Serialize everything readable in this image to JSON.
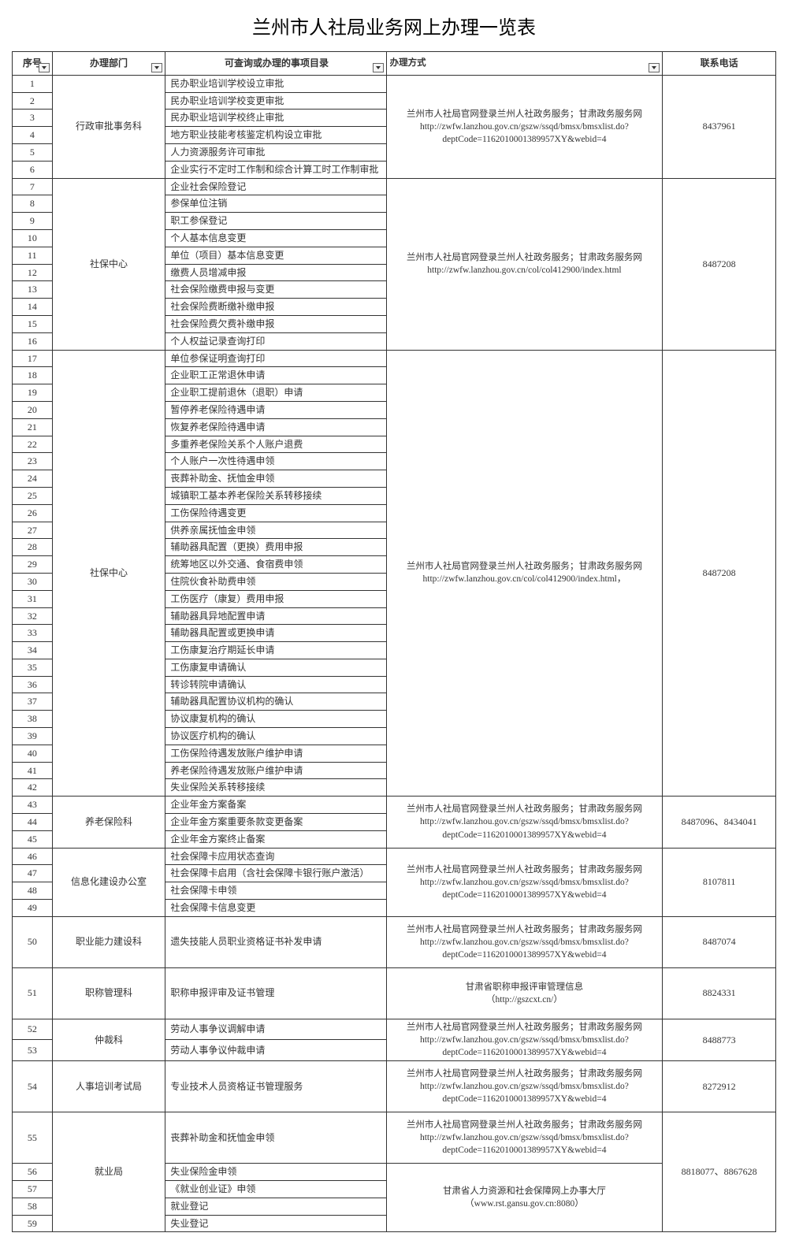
{
  "title": "兰州市人社局业务网上办理一览表",
  "headers": {
    "seq": "序号",
    "dept": "办理部门",
    "item": "可查询或办理的事项目录",
    "method": "办理方式",
    "phone": "联系电话"
  },
  "methodTexts": {
    "m1": "兰州市人社局官网登录兰州人社政务服务；甘肃政务服务网\nhttp://zwfw.lanzhou.gov.cn/gszw/ssqd/bmsx/bmsxlist.do?deptCode=1162010001389957XY&webid=4",
    "m2": "兰州市人社局官网登录兰州人社政务服务；甘肃政务服务网\nhttp://zwfw.lanzhou.gov.cn/col/col412900/index.html",
    "m3": "兰州市人社局官网登录兰州人社政务服务；甘肃政务服务网\nhttp://zwfw.lanzhou.gov.cn/col/col412900/index.html，",
    "m4": "甘肃省职称申报评审管理信息\n（http://gszcxt.cn/）",
    "m5": "甘肃省人力资源和社会保障网上办事大厅\n（www.rst.gansu.gov.cn:8080）"
  },
  "groups": [
    {
      "dept": "行政审批事务科",
      "phone": "8437961",
      "method": "m1",
      "items": [
        {
          "n": 1,
          "t": "民办职业培训学校设立审批"
        },
        {
          "n": 2,
          "t": "民办职业培训学校变更审批"
        },
        {
          "n": 3,
          "t": "民办职业培训学校终止审批"
        },
        {
          "n": 4,
          "t": "地方职业技能考核鉴定机构设立审批"
        },
        {
          "n": 5,
          "t": "人力资源服务许可审批"
        },
        {
          "n": 6,
          "t": "企业实行不定时工作制和综合计算工时工作制审批"
        }
      ]
    },
    {
      "dept": "社保中心",
      "phone": "8487208",
      "method": "m2",
      "items": [
        {
          "n": 7,
          "t": "企业社会保险登记"
        },
        {
          "n": 8,
          "t": "参保单位注销"
        },
        {
          "n": 9,
          "t": "职工参保登记"
        },
        {
          "n": 10,
          "t": "个人基本信息变更"
        },
        {
          "n": 11,
          "t": "单位（项目）基本信息变更"
        },
        {
          "n": 12,
          "t": "缴费人员增减申报"
        },
        {
          "n": 13,
          "t": "社会保险缴费申报与变更"
        },
        {
          "n": 14,
          "t": "社会保险费断缴补缴申报"
        },
        {
          "n": 15,
          "t": "社会保险费欠费补缴申报"
        },
        {
          "n": 16,
          "t": "个人权益记录查询打印"
        }
      ]
    },
    {
      "dept": "社保中心",
      "phone": "8487208",
      "method": "m3",
      "items": [
        {
          "n": 17,
          "t": "单位参保证明查询打印"
        },
        {
          "n": 18,
          "t": "企业职工正常退休申请"
        },
        {
          "n": 19,
          "t": "企业职工提前退休（退职）申请"
        },
        {
          "n": 20,
          "t": "暂停养老保险待遇申请"
        },
        {
          "n": 21,
          "t": "恢复养老保险待遇申请"
        },
        {
          "n": 22,
          "t": "多重养老保险关系个人账户退费"
        },
        {
          "n": 23,
          "t": "个人账户一次性待遇申领"
        },
        {
          "n": 24,
          "t": "丧葬补助金、抚恤金申领"
        },
        {
          "n": 25,
          "t": "城镇职工基本养老保险关系转移接续"
        },
        {
          "n": 26,
          "t": "工伤保险待遇变更"
        },
        {
          "n": 27,
          "t": "供养亲属抚恤金申领"
        },
        {
          "n": 28,
          "t": "辅助器具配置（更换）费用申报"
        },
        {
          "n": 29,
          "t": "统筹地区以外交通、食宿费申领"
        },
        {
          "n": 30,
          "t": "住院伙食补助费申领"
        },
        {
          "n": 31,
          "t": "工伤医疗（康复）费用申报"
        },
        {
          "n": 32,
          "t": "辅助器具异地配置申请"
        },
        {
          "n": 33,
          "t": "辅助器具配置或更换申请"
        },
        {
          "n": 34,
          "t": "工伤康复治疗期延长申请"
        },
        {
          "n": 35,
          "t": "工伤康复申请确认"
        },
        {
          "n": 36,
          "t": "转诊转院申请确认"
        },
        {
          "n": 37,
          "t": "辅助器具配置协议机构的确认"
        },
        {
          "n": 38,
          "t": "协议康复机构的确认"
        },
        {
          "n": 39,
          "t": "协议医疗机构的确认"
        },
        {
          "n": 40,
          "t": "工伤保险待遇发放账户维护申请"
        },
        {
          "n": 41,
          "t": "养老保险待遇发放账户维护申请"
        },
        {
          "n": 42,
          "t": "失业保险关系转移接续"
        }
      ]
    },
    {
      "dept": "养老保险科",
      "phone": "8487096、8434041",
      "method": "m1",
      "items": [
        {
          "n": 43,
          "t": "企业年金方案备案"
        },
        {
          "n": 44,
          "t": "企业年金方案重要条款变更备案"
        },
        {
          "n": 45,
          "t": "企业年金方案终止备案"
        }
      ]
    },
    {
      "dept": "信息化建设办公室",
      "phone": "8107811",
      "method": "m1",
      "items": [
        {
          "n": 46,
          "t": "社会保障卡应用状态查询"
        },
        {
          "n": 47,
          "t": "社会保障卡启用（含社会保障卡银行账户激活）"
        },
        {
          "n": 48,
          "t": "社会保障卡申领"
        },
        {
          "n": 49,
          "t": "社会保障卡信息变更"
        }
      ]
    },
    {
      "dept": "职业能力建设科",
      "phone": "8487074",
      "method": "m1",
      "tall": true,
      "items": [
        {
          "n": 50,
          "t": "遗失技能人员职业资格证书补发申请"
        }
      ]
    },
    {
      "dept": "职称管理科",
      "phone": "8824331",
      "method": "m4",
      "tall": true,
      "items": [
        {
          "n": 51,
          "t": "职称申报评审及证书管理"
        }
      ]
    },
    {
      "dept": "仲裁科",
      "phone": "8488773",
      "method": "m1",
      "items": [
        {
          "n": 52,
          "t": "劳动人事争议调解申请"
        },
        {
          "n": 53,
          "t": "劳动人事争议仲裁申请"
        }
      ]
    },
    {
      "dept": "人事培训考试局",
      "phone": "8272912",
      "method": "m1",
      "tall": true,
      "items": [
        {
          "n": 54,
          "t": "专业技术人员资格证书管理服务"
        }
      ]
    }
  ],
  "jiuyeju": {
    "dept": "就业局",
    "phone": "8818077、8867628",
    "sub1": {
      "method": "m1",
      "items": [
        {
          "n": 55,
          "t": "丧葬补助金和抚恤金申领"
        }
      ]
    },
    "sub2": {
      "method": "m5",
      "items": [
        {
          "n": 56,
          "t": "失业保险金申领"
        },
        {
          "n": 57,
          "t": "《就业创业证》申领"
        },
        {
          "n": 58,
          "t": "就业登记"
        },
        {
          "n": 59,
          "t": "失业登记"
        }
      ]
    }
  }
}
